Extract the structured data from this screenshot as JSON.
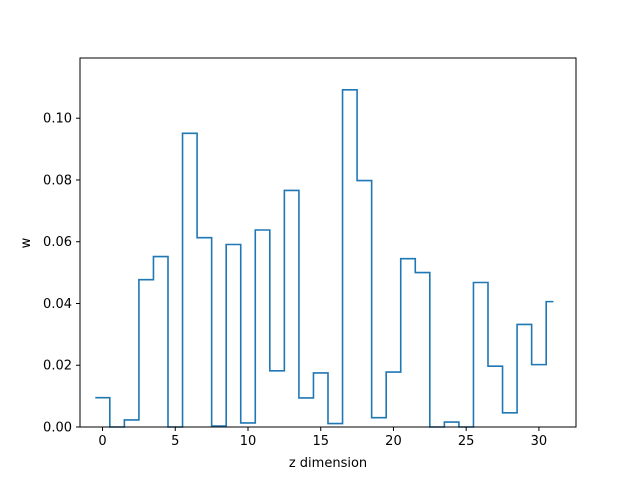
{
  "chart_data": {
    "type": "line",
    "drawstyle": "steps-mid",
    "xlabel": "z dimension",
    "ylabel": "w",
    "xlim": [
      -1.55,
      32.55
    ],
    "ylim": [
      0.0,
      0.1195
    ],
    "xticks": [
      0,
      5,
      10,
      15,
      20,
      25,
      30
    ],
    "xtick_labels": [
      "0",
      "5",
      "10",
      "15",
      "20",
      "25",
      "30"
    ],
    "yticks": [
      0.0,
      0.02,
      0.04,
      0.06,
      0.08,
      0.1
    ],
    "ytick_labels": [
      "0.00",
      "0.02",
      "0.04",
      "0.06",
      "0.08",
      "0.10"
    ],
    "grid": false,
    "color": "#1f77b4",
    "x": [
      0,
      1,
      2,
      3,
      4,
      5,
      6,
      7,
      8,
      9,
      10,
      11,
      12,
      13,
      14,
      15,
      16,
      17,
      18,
      19,
      20,
      21,
      22,
      23,
      24,
      25,
      26,
      27,
      28,
      29,
      30,
      31
    ],
    "y": [
      0.0095,
      0.0,
      0.0023,
      0.0477,
      0.0552,
      0.0,
      0.0951,
      0.0613,
      0.0003,
      0.0591,
      0.0013,
      0.0638,
      0.0182,
      0.0766,
      0.0094,
      0.0175,
      0.0011,
      0.1092,
      0.0798,
      0.003,
      0.0178,
      0.0545,
      0.05,
      0.0,
      0.0016,
      0.0,
      0.0468,
      0.0197,
      0.0046,
      0.0332,
      0.0202,
      0.0406
    ]
  }
}
